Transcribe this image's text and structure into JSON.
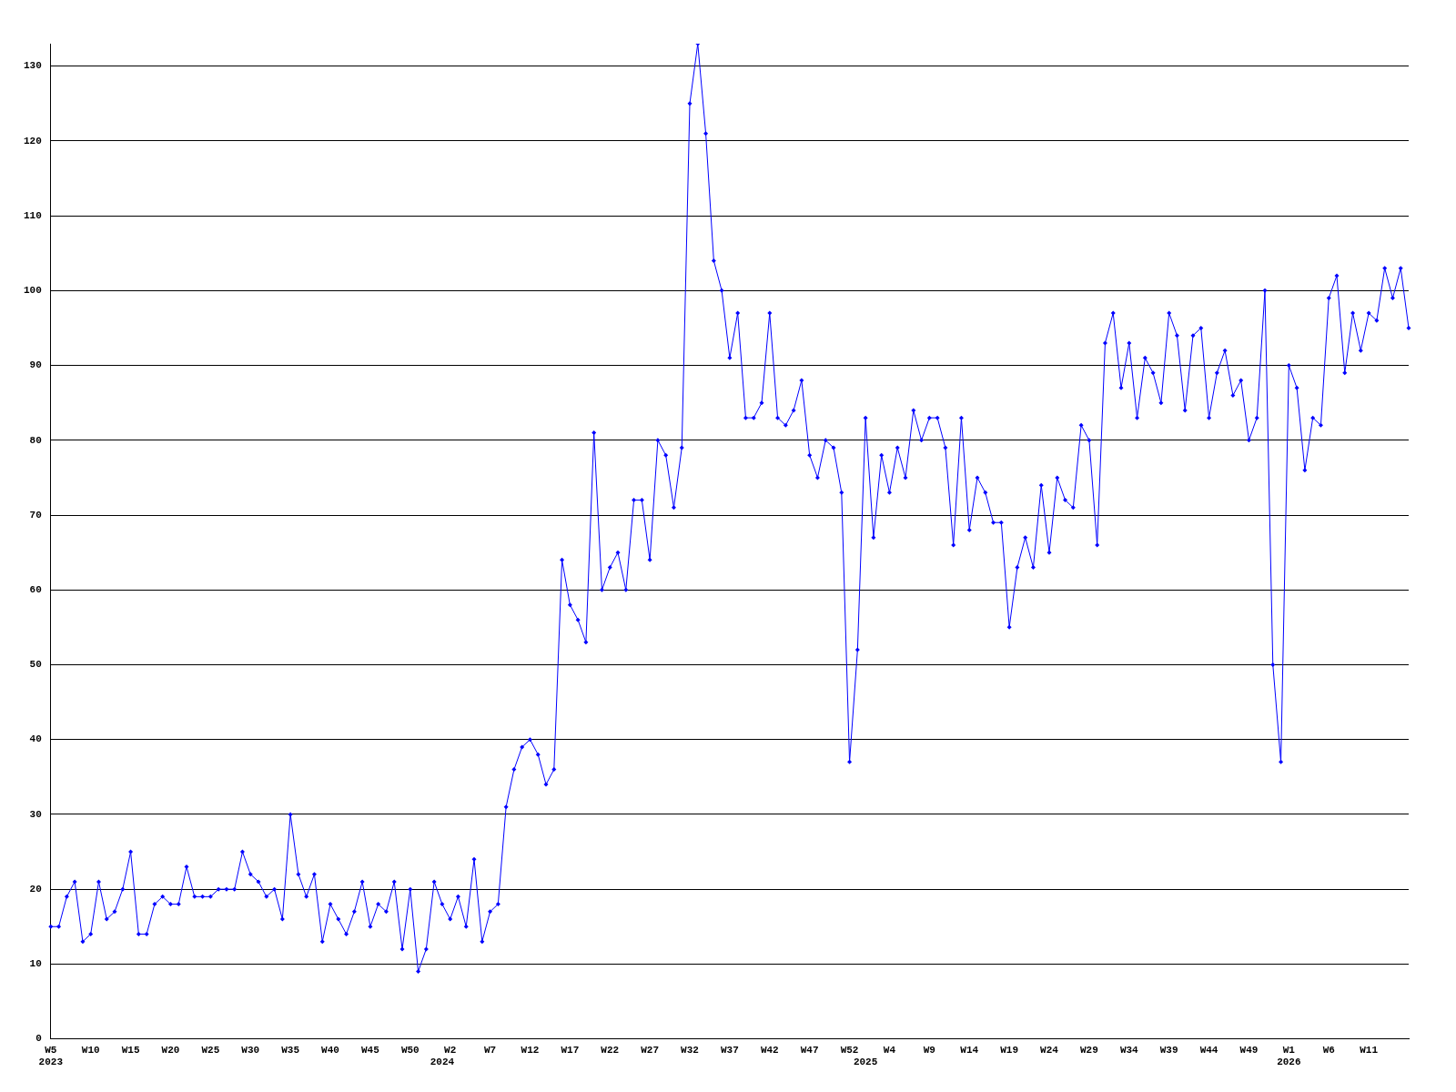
{
  "chart_data": {
    "type": "line",
    "categories": [
      "W5\n2023",
      null,
      null,
      null,
      null,
      "W10",
      null,
      null,
      null,
      null,
      "W15",
      null,
      null,
      null,
      null,
      "W20",
      null,
      null,
      null,
      null,
      "W25",
      null,
      null,
      null,
      null,
      "W30",
      null,
      null,
      null,
      null,
      "W35",
      null,
      null,
      null,
      null,
      "W40",
      null,
      null,
      null,
      null,
      "W45",
      null,
      null,
      null,
      null,
      "W50",
      null,
      null,
      null,
      "\n2024",
      "W2",
      null,
      null,
      null,
      null,
      "W7",
      null,
      null,
      null,
      null,
      "W12",
      null,
      null,
      null,
      null,
      "W17",
      null,
      null,
      null,
      null,
      "W22",
      null,
      null,
      null,
      null,
      "W27",
      null,
      null,
      null,
      null,
      "W32",
      null,
      null,
      null,
      null,
      "W37",
      null,
      null,
      null,
      null,
      "W42",
      null,
      null,
      null,
      null,
      "W47",
      null,
      null,
      null,
      null,
      "W52",
      null,
      "\n2025",
      null,
      null,
      "W4",
      null,
      null,
      null,
      null,
      "W9",
      null,
      null,
      null,
      null,
      "W14",
      null,
      null,
      null,
      null,
      "W19",
      null,
      null,
      null,
      null,
      "W24",
      null,
      null,
      null,
      null,
      "W29",
      null,
      null,
      null,
      null,
      "W34",
      null,
      null,
      null,
      null,
      "W39",
      null,
      null,
      null,
      null,
      "W44",
      null,
      null,
      null,
      null,
      "W49",
      null,
      null,
      null,
      null,
      "W1\n2026",
      null,
      null,
      null,
      null,
      "W6",
      null,
      null,
      null,
      null,
      "W11",
      null,
      null,
      null,
      null,
      null
    ],
    "series": [
      {
        "color": "#0000ff",
        "values": [
          15,
          15,
          19,
          21,
          13,
          14,
          21,
          16,
          17,
          20,
          25,
          14,
          14,
          18,
          19,
          18,
          18,
          23,
          19,
          19,
          19,
          20,
          20,
          20,
          25,
          22,
          21,
          19,
          20,
          16,
          30,
          22,
          19,
          22,
          13,
          18,
          16,
          14,
          17,
          21,
          15,
          18,
          17,
          21,
          12,
          20,
          9,
          12,
          21,
          18,
          16,
          19,
          15,
          24,
          13,
          17,
          18,
          31,
          36,
          39,
          40,
          38,
          34,
          36,
          64,
          58,
          56,
          53,
          81,
          60,
          63,
          65,
          60,
          72,
          72,
          64,
          80,
          78,
          71,
          79,
          125,
          133,
          121,
          104,
          100,
          91,
          97,
          83,
          83,
          85,
          97,
          83,
          82,
          84,
          88,
          78,
          75,
          80,
          79,
          73,
          37,
          52,
          83,
          67,
          78,
          73,
          79,
          75,
          84,
          80,
          83,
          83,
          79,
          66,
          83,
          68,
          75,
          73,
          69,
          69,
          55,
          63,
          67,
          63,
          74,
          65,
          75,
          72,
          71,
          82,
          80,
          66,
          93,
          97,
          87,
          93,
          83,
          91,
          89,
          85,
          97,
          94,
          84,
          94,
          95,
          83,
          89,
          92,
          86,
          88,
          80,
          83,
          100,
          50,
          37,
          90,
          87,
          76,
          83,
          82,
          99,
          102,
          89,
          97,
          92,
          97,
          96,
          103,
          99,
          103,
          95
        ]
      }
    ],
    "ylim": [
      0,
      133
    ],
    "yticks": [
      0,
      10,
      20,
      30,
      40,
      50,
      60,
      70,
      80,
      90,
      100,
      110,
      120,
      130
    ],
    "grid": "y",
    "legend": false,
    "marker": "diamond",
    "line_style": "solid"
  }
}
